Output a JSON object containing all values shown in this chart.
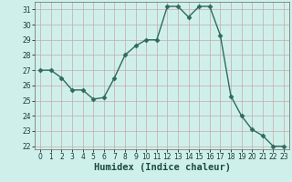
{
  "xlabel": "Humidex (Indice chaleur)",
  "x": [
    0,
    1,
    2,
    3,
    4,
    5,
    6,
    7,
    8,
    9,
    10,
    11,
    12,
    13,
    14,
    15,
    16,
    17,
    18,
    19,
    20,
    21,
    22,
    23
  ],
  "y": [
    27.0,
    27.0,
    26.5,
    25.7,
    25.7,
    25.1,
    25.2,
    26.5,
    28.0,
    28.6,
    29.0,
    29.0,
    31.2,
    31.2,
    30.5,
    31.2,
    31.2,
    29.3,
    25.3,
    24.0,
    23.1,
    22.7,
    22.0,
    22.0
  ],
  "line_color": "#2e6b5e",
  "marker": "D",
  "marker_size": 2.5,
  "bg_color": "#cff0ea",
  "grid_color_major": "#c8a8a8",
  "grid_color_minor": "#ddc8c8",
  "ylim": [
    21.8,
    31.5
  ],
  "yticks": [
    22,
    23,
    24,
    25,
    26,
    27,
    28,
    29,
    30,
    31
  ],
  "xticks": [
    0,
    1,
    2,
    3,
    4,
    5,
    6,
    7,
    8,
    9,
    10,
    11,
    12,
    13,
    14,
    15,
    16,
    17,
    18,
    19,
    20,
    21,
    22,
    23
  ],
  "tick_fontsize": 5.5,
  "xlabel_fontsize": 7.5,
  "linewidth": 1.0
}
